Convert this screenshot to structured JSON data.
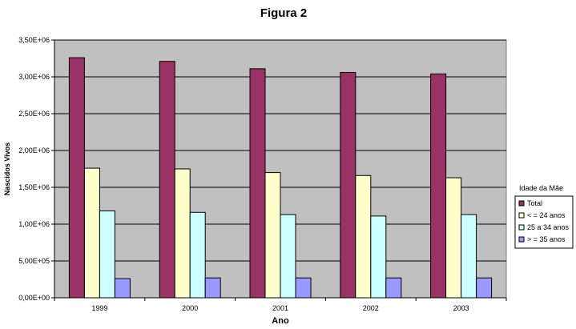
{
  "chart_data": {
    "type": "bar",
    "title": "Figura 2",
    "xlabel": "Ano",
    "ylabel": "Nascidos Vivos",
    "categories": [
      "1999",
      "2000",
      "2001",
      "2002",
      "2003"
    ],
    "ylim": [
      0,
      3500000
    ],
    "yticks": [
      {
        "value": 0,
        "label": "0,00E+00"
      },
      {
        "value": 500000,
        "label": "5,00E+05"
      },
      {
        "value": 1000000,
        "label": "1,00E+06"
      },
      {
        "value": 1500000,
        "label": "1,50E+06"
      },
      {
        "value": 2000000,
        "label": "2,00E+06"
      },
      {
        "value": 2500000,
        "label": "2,50E+06"
      },
      {
        "value": 3000000,
        "label": "3,00E+06"
      },
      {
        "value": 3500000,
        "label": "3,50E+06"
      }
    ],
    "grid": true,
    "legend": {
      "title": "Idade da Mãe",
      "position": "right"
    },
    "series": [
      {
        "name": "Total",
        "color": "#993366",
        "values": [
          3260000,
          3210000,
          3110000,
          3060000,
          3040000
        ]
      },
      {
        "name": "< = 24 anos",
        "color": "#FFFFCC",
        "values": [
          1760000,
          1750000,
          1700000,
          1660000,
          1630000
        ]
      },
      {
        "name": "25 a 34 anos",
        "color": "#CCFFFF",
        "values": [
          1180000,
          1160000,
          1130000,
          1110000,
          1130000
        ]
      },
      {
        "name": "> = 35 anos",
        "color": "#9999FF",
        "values": [
          260000,
          270000,
          270000,
          270000,
          270000
        ]
      }
    ],
    "plot_background": "#C0C0C0"
  }
}
